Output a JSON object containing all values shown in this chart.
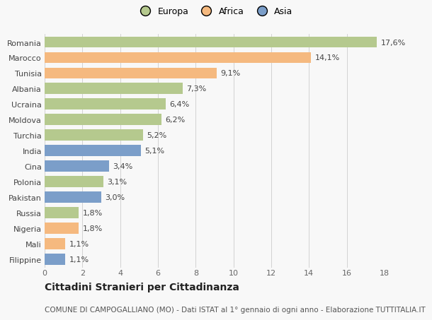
{
  "categories": [
    "Romania",
    "Marocco",
    "Tunisia",
    "Albania",
    "Ucraina",
    "Moldova",
    "Turchia",
    "India",
    "Cina",
    "Polonia",
    "Pakistan",
    "Russia",
    "Nigeria",
    "Mali",
    "Filippine"
  ],
  "values": [
    17.6,
    14.1,
    9.1,
    7.3,
    6.4,
    6.2,
    5.2,
    5.1,
    3.4,
    3.1,
    3.0,
    1.8,
    1.8,
    1.1,
    1.1
  ],
  "labels": [
    "17,6%",
    "14,1%",
    "9,1%",
    "7,3%",
    "6,4%",
    "6,2%",
    "5,2%",
    "5,1%",
    "3,4%",
    "3,1%",
    "3,0%",
    "1,8%",
    "1,8%",
    "1,1%",
    "1,1%"
  ],
  "continents": [
    "Europa",
    "Africa",
    "Africa",
    "Europa",
    "Europa",
    "Europa",
    "Europa",
    "Asia",
    "Asia",
    "Europa",
    "Asia",
    "Europa",
    "Africa",
    "Africa",
    "Asia"
  ],
  "colors": {
    "Europa": "#b5c98e",
    "Africa": "#f5b97f",
    "Asia": "#7b9ec9"
  },
  "legend_labels": [
    "Europa",
    "Africa",
    "Asia"
  ],
  "legend_colors": [
    "#b5c98e",
    "#f5b97f",
    "#7b9ec9"
  ],
  "title": "Cittadini Stranieri per Cittadinanza",
  "subtitle": "COMUNE DI CAMPOGALLIANO (MO) - Dati ISTAT al 1° gennaio di ogni anno - Elaborazione TUTTITALIA.IT",
  "xlim": [
    0,
    18
  ],
  "xticks": [
    0,
    2,
    4,
    6,
    8,
    10,
    12,
    14,
    16,
    18
  ],
  "background_color": "#f8f8f8",
  "bar_height": 0.72,
  "title_fontsize": 10,
  "subtitle_fontsize": 7.5,
  "label_fontsize": 8,
  "tick_fontsize": 8,
  "legend_fontsize": 9
}
